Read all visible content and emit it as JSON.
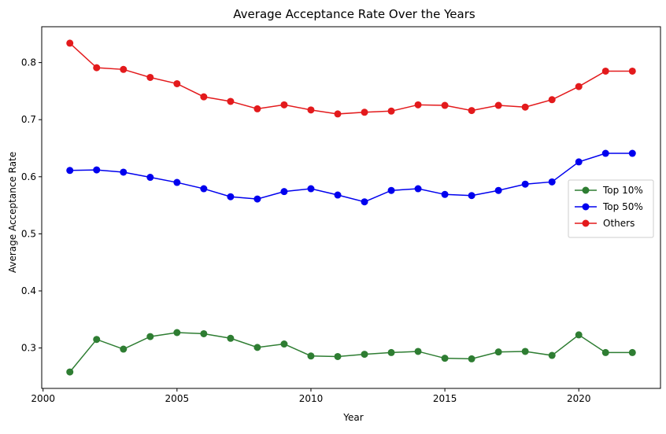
{
  "chart_data": {
    "type": "line",
    "title": "Average Acceptance Rate Over the Years",
    "xlabel": "Year",
    "ylabel": "Average Acceptance Rate",
    "x": [
      2001,
      2002,
      2003,
      2004,
      2005,
      2006,
      2007,
      2008,
      2009,
      2010,
      2011,
      2012,
      2013,
      2014,
      2015,
      2016,
      2017,
      2018,
      2019,
      2020,
      2021,
      2022
    ],
    "series": [
      {
        "name": "Top 10%",
        "color": "#2e7d32",
        "values": [
          0.258,
          0.315,
          0.298,
          0.32,
          0.327,
          0.325,
          0.317,
          0.301,
          0.307,
          0.286,
          0.285,
          0.289,
          0.292,
          0.294,
          0.282,
          0.281,
          0.293,
          0.294,
          0.287,
          0.323,
          0.292,
          0.292
        ]
      },
      {
        "name": "Top 50%",
        "color": "#0000ee",
        "values": [
          0.611,
          0.612,
          0.608,
          0.599,
          0.59,
          0.579,
          0.565,
          0.561,
          0.574,
          0.579,
          0.568,
          0.556,
          0.576,
          0.579,
          0.569,
          0.567,
          0.576,
          0.587,
          0.591,
          0.626,
          0.641,
          0.641
        ]
      },
      {
        "name": "Others",
        "color": "#e31a1c",
        "values": [
          0.834,
          0.791,
          0.788,
          0.774,
          0.763,
          0.74,
          0.732,
          0.719,
          0.726,
          0.717,
          0.71,
          0.713,
          0.715,
          0.726,
          0.725,
          0.716,
          0.725,
          0.722,
          0.735,
          0.758,
          0.785,
          0.785
        ]
      }
    ],
    "xlim": [
      1999.95,
      2023.05
    ],
    "ylim": [
      0.2292,
      0.8628
    ],
    "xticks": [
      2000,
      2005,
      2010,
      2015,
      2020
    ],
    "xtick_labels": [
      "2000",
      "2005",
      "2010",
      "2015",
      "2020"
    ],
    "yticks": [
      0.3,
      0.4,
      0.5,
      0.6,
      0.7,
      0.8
    ],
    "ytick_labels": [
      "0.3",
      "0.4",
      "0.5",
      "0.6",
      "0.7",
      "0.8"
    ],
    "grid": false,
    "legend_position": "center-right"
  }
}
